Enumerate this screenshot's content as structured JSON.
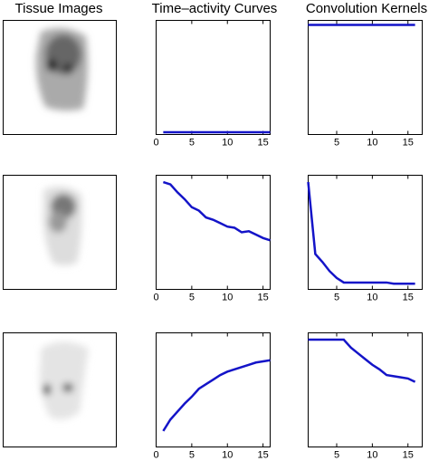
{
  "column_titles": [
    "Tissue Images",
    "Time–activity Curves",
    "Convolution Kernels"
  ],
  "chart_data": [
    {
      "type": "line",
      "xlim": [
        0,
        16
      ],
      "ylim": [
        0,
        1
      ],
      "xticks": [
        0,
        5,
        10,
        15
      ],
      "series": [
        {
          "color": "#1414c8",
          "x": [
            1,
            2,
            3,
            4,
            5,
            6,
            7,
            8,
            9,
            10,
            11,
            12,
            13,
            14,
            15,
            16
          ],
          "values": [
            0.02,
            0.02,
            0.02,
            0.02,
            0.02,
            0.02,
            0.02,
            0.02,
            0.02,
            0.02,
            0.02,
            0.02,
            0.02,
            0.02,
            0.02,
            0.02
          ]
        }
      ]
    },
    {
      "type": "line",
      "xlim": [
        1,
        17
      ],
      "ylim": [
        0,
        1
      ],
      "xticks": [
        5,
        10,
        15
      ],
      "series": [
        {
          "color": "#1414c8",
          "x": [
            1,
            2,
            3,
            4,
            5,
            6,
            7,
            8,
            9,
            10,
            11,
            12,
            13,
            14,
            15,
            16
          ],
          "values": [
            0.96,
            0.96,
            0.96,
            0.96,
            0.96,
            0.96,
            0.96,
            0.96,
            0.96,
            0.96,
            0.96,
            0.96,
            0.96,
            0.96,
            0.96,
            0.96
          ]
        }
      ]
    },
    {
      "type": "line",
      "xlim": [
        0,
        16
      ],
      "ylim": [
        0,
        1
      ],
      "xticks": [
        0,
        5,
        10,
        15
      ],
      "series": [
        {
          "color": "#1414c8",
          "x": [
            1,
            2,
            3,
            4,
            5,
            6,
            7,
            8,
            9,
            10,
            11,
            12,
            13,
            14,
            15,
            16
          ],
          "values": [
            0.94,
            0.92,
            0.85,
            0.79,
            0.72,
            0.69,
            0.63,
            0.61,
            0.58,
            0.55,
            0.54,
            0.5,
            0.51,
            0.48,
            0.45,
            0.43
          ]
        }
      ]
    },
    {
      "type": "line",
      "xlim": [
        1,
        17
      ],
      "ylim": [
        0,
        1
      ],
      "xticks": [
        5,
        10,
        15
      ],
      "series": [
        {
          "color": "#1414c8",
          "x": [
            1,
            2,
            3,
            4,
            5,
            6,
            7,
            8,
            9,
            10,
            11,
            12,
            13,
            14,
            15,
            16
          ],
          "values": [
            0.94,
            0.31,
            0.24,
            0.16,
            0.1,
            0.06,
            0.06,
            0.06,
            0.06,
            0.06,
            0.06,
            0.06,
            0.05,
            0.05,
            0.05,
            0.05
          ]
        }
      ]
    },
    {
      "type": "line",
      "xlim": [
        0,
        16
      ],
      "ylim": [
        0,
        1
      ],
      "xticks": [
        0,
        5,
        10,
        15
      ],
      "series": [
        {
          "color": "#1414c8",
          "x": [
            1,
            2,
            3,
            4,
            5,
            6,
            7,
            8,
            9,
            10,
            11,
            12,
            13,
            14,
            15,
            16
          ],
          "values": [
            0.14,
            0.24,
            0.31,
            0.38,
            0.44,
            0.51,
            0.55,
            0.59,
            0.63,
            0.66,
            0.68,
            0.7,
            0.72,
            0.74,
            0.75,
            0.76
          ]
        }
      ]
    },
    {
      "type": "line",
      "xlim": [
        1,
        17
      ],
      "ylim": [
        0,
        1
      ],
      "xticks": [
        5,
        10,
        15
      ],
      "series": [
        {
          "color": "#1414c8",
          "x": [
            1,
            2,
            3,
            4,
            5,
            6,
            7,
            8,
            9,
            10,
            11,
            12,
            13,
            14,
            15,
            16
          ],
          "values": [
            0.94,
            0.94,
            0.94,
            0.94,
            0.94,
            0.94,
            0.87,
            0.82,
            0.77,
            0.72,
            0.68,
            0.63,
            0.62,
            0.61,
            0.6,
            0.57
          ]
        }
      ]
    }
  ]
}
